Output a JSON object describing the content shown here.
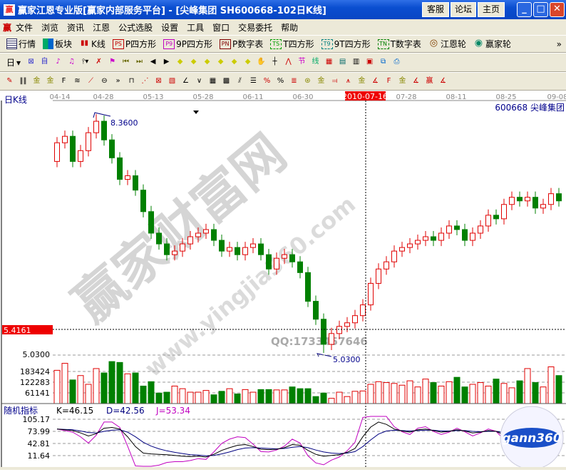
{
  "window": {
    "title": "赢家江恩专业版[赢家内部服务平台] - [尖峰集团   SH600668-102日K线]",
    "buttons": [
      "客服",
      "论坛",
      "主页"
    ]
  },
  "menu": [
    "文件",
    "浏览",
    "资讯",
    "江恩",
    "公式选股",
    "设置",
    "工具",
    "窗口",
    "交易委托",
    "帮助"
  ],
  "toolbar1": [
    {
      "icon": "grid-icon",
      "label": "行情"
    },
    {
      "icon": "blocks-icon",
      "label": "板块"
    },
    {
      "icon": "kline-icon",
      "label": "K线"
    },
    {
      "icon": "PS",
      "label": "P四方形",
      "color": "#c00000"
    },
    {
      "icon": "P9",
      "label": "9P四方形",
      "color": "#c000c0"
    },
    {
      "icon": "PN",
      "label": "P数字表",
      "color": "#800000"
    },
    {
      "icon": "TS",
      "label": "T四方形",
      "color": "#00a000"
    },
    {
      "icon": "T9",
      "label": "9T四方形",
      "color": "#008080"
    },
    {
      "icon": "TN",
      "label": "T数字表",
      "color": "#008000"
    },
    {
      "icon": "wheel-icon",
      "label": "江恩轮"
    },
    {
      "icon": "big-wheel-icon",
      "label": "赢家轮"
    }
  ],
  "toolbar2": {
    "period": "日"
  },
  "chart": {
    "period_label": "日K线",
    "stock": "600668  尖峰集团",
    "crosshair_date": "2010-07-16",
    "dates": [
      "04-14",
      "04-28",
      "05-13",
      "05-28",
      "06-11",
      "06-30",
      "07-28",
      "08-11",
      "08-25",
      "09-08"
    ],
    "high_label": "8.3600",
    "low_label": "5.0300",
    "cursor_price": "5.4161",
    "up_color": "#e00000",
    "down_color": "#008000",
    "open": [
      7.7,
      7.96,
      8.05,
      7.7,
      7.85,
      8.1,
      8.26,
      8.0,
      7.75,
      7.45,
      7.5,
      7.3,
      7.0,
      6.7,
      6.55,
      6.4,
      6.45,
      6.55,
      6.65,
      6.7,
      6.75,
      6.6,
      6.45,
      6.5,
      6.4,
      6.5,
      6.55,
      6.4,
      6.2,
      6.35,
      6.4,
      6.3,
      6.15,
      5.75,
      5.5,
      5.15,
      5.3,
      5.4,
      5.45,
      5.55,
      5.7,
      6.0,
      6.2,
      6.3,
      6.45,
      6.5,
      6.55,
      6.6,
      6.65,
      6.6,
      6.7,
      6.8,
      6.75,
      6.6,
      6.7,
      6.8,
      6.95,
      6.9,
      7.1,
      7.2,
      7.15,
      7.2,
      7.05,
      7.1,
      7.25
    ],
    "close": [
      7.96,
      8.05,
      7.7,
      7.85,
      8.1,
      8.26,
      8.0,
      7.75,
      7.45,
      7.5,
      7.3,
      7.0,
      6.7,
      6.55,
      6.4,
      6.45,
      6.55,
      6.65,
      6.7,
      6.75,
      6.6,
      6.45,
      6.5,
      6.4,
      6.5,
      6.55,
      6.4,
      6.2,
      6.35,
      6.4,
      6.3,
      6.15,
      5.75,
      5.5,
      5.15,
      5.3,
      5.4,
      5.45,
      5.55,
      5.7,
      6.0,
      6.2,
      6.3,
      6.45,
      6.5,
      6.55,
      6.6,
      6.65,
      6.6,
      6.7,
      6.8,
      6.75,
      6.6,
      6.7,
      6.8,
      6.95,
      6.9,
      7.1,
      7.2,
      7.15,
      7.2,
      7.05,
      7.1,
      7.25,
      7.15
    ],
    "high_value": 8.36,
    "low_value": 5.03
  },
  "volume": {
    "ticks": [
      "183424",
      "122283",
      "61141"
    ],
    "values": [
      190000,
      230000,
      135000,
      160000,
      110000,
      200000,
      175000,
      240000,
      235000,
      170000,
      175000,
      100000,
      125000,
      60000,
      65000,
      100000,
      85000,
      65000,
      65000,
      75000,
      50000,
      70000,
      85000,
      55000,
      80000,
      65000,
      80000,
      80000,
      78000,
      78000,
      95000,
      85000,
      85000,
      40000,
      60000,
      30000,
      65000,
      40000,
      70000,
      72000,
      110000,
      125000,
      120000,
      115000,
      105000,
      130000,
      95000,
      140000,
      120000,
      100000,
      125000,
      150000,
      95000,
      110000,
      120000,
      100000,
      140000,
      115000,
      90000,
      130000,
      200000,
      120000,
      95000,
      210000,
      160000
    ]
  },
  "kdj": {
    "title": "随机指标",
    "k_label": "K=46.15",
    "d_label": "D=42.56",
    "j_label": "J=53.34",
    "ticks": [
      "105.17",
      "73.99",
      "42.81",
      "11.64"
    ],
    "k_color": "#000000",
    "d_color": "#000080",
    "j_color": "#c000c0",
    "K": [
      80,
      78,
      76,
      70,
      62,
      68,
      82,
      84,
      80,
      60,
      35,
      18,
      16,
      15,
      14,
      12,
      10,
      9,
      10,
      8,
      15,
      25,
      32,
      38,
      40,
      35,
      28,
      27,
      28,
      32,
      40,
      38,
      25,
      15,
      10,
      12,
      14,
      20,
      30,
      60,
      85,
      98,
      92,
      80,
      75,
      72,
      78,
      80,
      76,
      72,
      74,
      78,
      75,
      70,
      72,
      76,
      74,
      65,
      55,
      45,
      38,
      35,
      40,
      44,
      46.15
    ],
    "D": [
      80,
      79,
      78,
      75,
      71,
      70,
      74,
      77,
      78,
      72,
      60,
      46,
      36,
      29,
      24,
      20,
      17,
      14,
      13,
      11,
      12,
      16,
      21,
      27,
      31,
      32,
      31,
      30,
      29,
      30,
      33,
      35,
      32,
      26,
      21,
      18,
      17,
      18,
      22,
      35,
      52,
      67,
      75,
      77,
      76,
      75,
      76,
      77,
      77,
      75,
      75,
      76,
      76,
      74,
      73,
      74,
      74,
      71,
      66,
      59,
      52,
      46,
      44,
      44,
      42.56
    ],
    "J": [
      80,
      76,
      72,
      60,
      44,
      64,
      98,
      98,
      84,
      36,
      -15,
      -38,
      -24,
      -13,
      -6,
      -4,
      -4,
      -1,
      4,
      2,
      21,
      43,
      54,
      60,
      58,
      41,
      22,
      21,
      26,
      36,
      54,
      44,
      11,
      -7,
      -12,
      0,
      8,
      24,
      46,
      110,
      151,
      160,
      126,
      86,
      73,
      66,
      82,
      86,
      74,
      66,
      72,
      82,
      73,
      62,
      70,
      80,
      74,
      53,
      33,
      17,
      10,
      13,
      32,
      44,
      53.34
    ]
  },
  "watermark": {
    "text1": "赢家财富网",
    "text2": "www.yingjia360.com",
    "qq": "QQ:1733457646",
    "logo": "gann360"
  }
}
